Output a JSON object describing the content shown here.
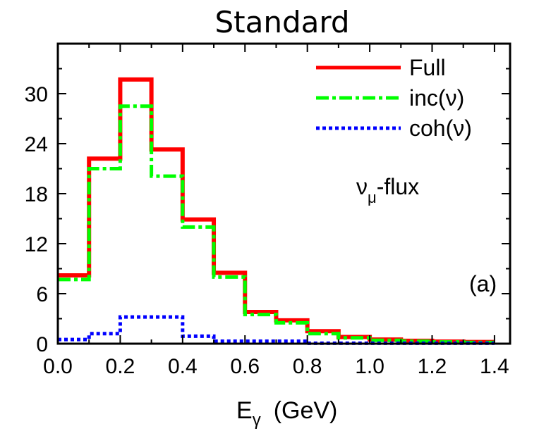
{
  "chart_data": {
    "type": "line",
    "step": true,
    "title": "Standard",
    "xlabel_main": "E",
    "xlabel_sub": "γ",
    "xlabel_unit": "(GeV)",
    "ylabel": "",
    "xlim": [
      0.0,
      1.45
    ],
    "ylim": [
      0,
      36
    ],
    "xticks": [
      0.0,
      0.2,
      0.4,
      0.6,
      0.8,
      1.0,
      1.2,
      1.4
    ],
    "xtick_labels": [
      "0.0",
      "0.2",
      "0.4",
      "0.6",
      "0.8",
      "1.0",
      "1.2",
      "1.4"
    ],
    "yticks": [
      0,
      6,
      12,
      18,
      24,
      30
    ],
    "ytick_labels": [
      "0",
      "6",
      "12",
      "18",
      "24",
      "30"
    ],
    "bin_edges": [
      0.0,
      0.1,
      0.2,
      0.3,
      0.4,
      0.5,
      0.6,
      0.7,
      0.8,
      0.9,
      1.0,
      1.1,
      1.2,
      1.3,
      1.4
    ],
    "series": [
      {
        "name": "Full",
        "color": "#ff0000",
        "style": "solid",
        "values": [
          8.2,
          22.2,
          31.7,
          23.3,
          14.9,
          8.5,
          3.8,
          2.8,
          1.5,
          0.8,
          0.5,
          0.35,
          0.25,
          0.2
        ]
      },
      {
        "name": "inc(ν)",
        "color": "#00ff00",
        "style": "dashdot",
        "values": [
          7.7,
          21.0,
          28.5,
          20.1,
          14.0,
          8.0,
          3.5,
          2.5,
          1.2,
          0.7,
          0.4,
          0.3,
          0.2,
          0.15
        ]
      },
      {
        "name": "coh(ν)",
        "color": "#0000ff",
        "style": "dotted",
        "values": [
          0.5,
          1.2,
          3.2,
          3.2,
          0.9,
          0.3,
          0.3,
          0.3,
          0.05,
          0.05,
          0.05,
          0.05,
          0.05,
          0.05
        ]
      }
    ],
    "legend_position": "top-right",
    "annotations": {
      "flux_main": "ν",
      "flux_sub": "μ",
      "flux_rest": "-flux",
      "panel_label": "(a)"
    }
  }
}
